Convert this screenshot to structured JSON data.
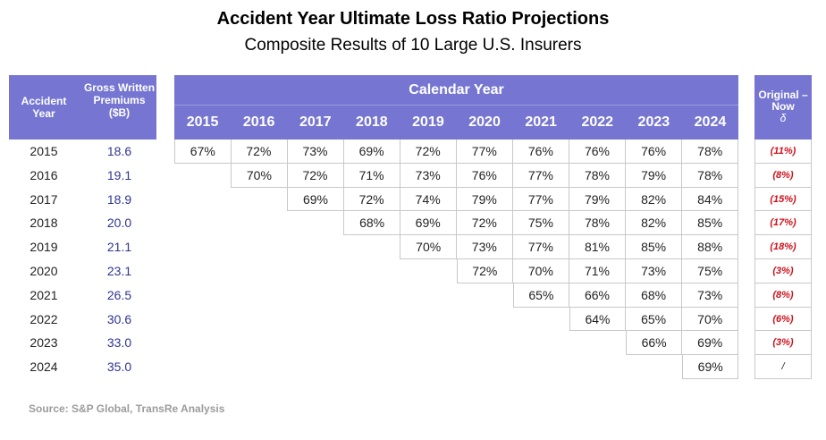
{
  "chart_data": {
    "type": "table",
    "title": "Accident Year Ultimate Loss Ratio Projections",
    "subtitle": "Composite Results of 10 Large U.S. Insurers",
    "headers": {
      "accident_year": "Accident Year",
      "premiums": "Gross Written Premiums ($B)",
      "calendar_year": "Calendar Year",
      "change": "Original – Now",
      "change_symbol": "δ"
    },
    "calendar_years": [
      "2015",
      "2016",
      "2017",
      "2018",
      "2019",
      "2020",
      "2021",
      "2022",
      "2023",
      "2024"
    ],
    "rows": [
      {
        "accident_year": "2015",
        "premium": "18.6",
        "ratios": [
          "67%",
          "72%",
          "73%",
          "69%",
          "72%",
          "77%",
          "76%",
          "76%",
          "76%",
          "78%"
        ],
        "change": "(11%)"
      },
      {
        "accident_year": "2016",
        "premium": "19.1",
        "ratios": [
          "70%",
          "72%",
          "71%",
          "73%",
          "76%",
          "77%",
          "78%",
          "79%",
          "78%"
        ],
        "change": "(8%)"
      },
      {
        "accident_year": "2017",
        "premium": "18.9",
        "ratios": [
          "69%",
          "72%",
          "74%",
          "79%",
          "77%",
          "79%",
          "82%",
          "84%"
        ],
        "change": "(15%)"
      },
      {
        "accident_year": "2018",
        "premium": "20.0",
        "ratios": [
          "68%",
          "69%",
          "72%",
          "75%",
          "78%",
          "82%",
          "85%"
        ],
        "change": "(17%)"
      },
      {
        "accident_year": "2019",
        "premium": "21.1",
        "ratios": [
          "70%",
          "73%",
          "77%",
          "81%",
          "85%",
          "88%"
        ],
        "change": "(18%)"
      },
      {
        "accident_year": "2020",
        "premium": "23.1",
        "ratios": [
          "72%",
          "70%",
          "71%",
          "73%",
          "75%"
        ],
        "change": "(3%)"
      },
      {
        "accident_year": "2021",
        "premium": "26.5",
        "ratios": [
          "65%",
          "66%",
          "68%",
          "73%"
        ],
        "change": "(8%)"
      },
      {
        "accident_year": "2022",
        "premium": "30.6",
        "ratios": [
          "64%",
          "65%",
          "70%"
        ],
        "change": "(6%)"
      },
      {
        "accident_year": "2023",
        "premium": "33.0",
        "ratios": [
          "66%",
          "69%"
        ],
        "change": "(3%)"
      },
      {
        "accident_year": "2024",
        "premium": "35.0",
        "ratios": [
          "69%"
        ],
        "change": "/"
      }
    ],
    "source": "Source: S&P Global, TransRe Analysis"
  },
  "colors": {
    "header_bg": "#7676d2",
    "premium_text": "#2e3490",
    "change_text": "#d0101b",
    "source_text": "#9c9c9c"
  }
}
